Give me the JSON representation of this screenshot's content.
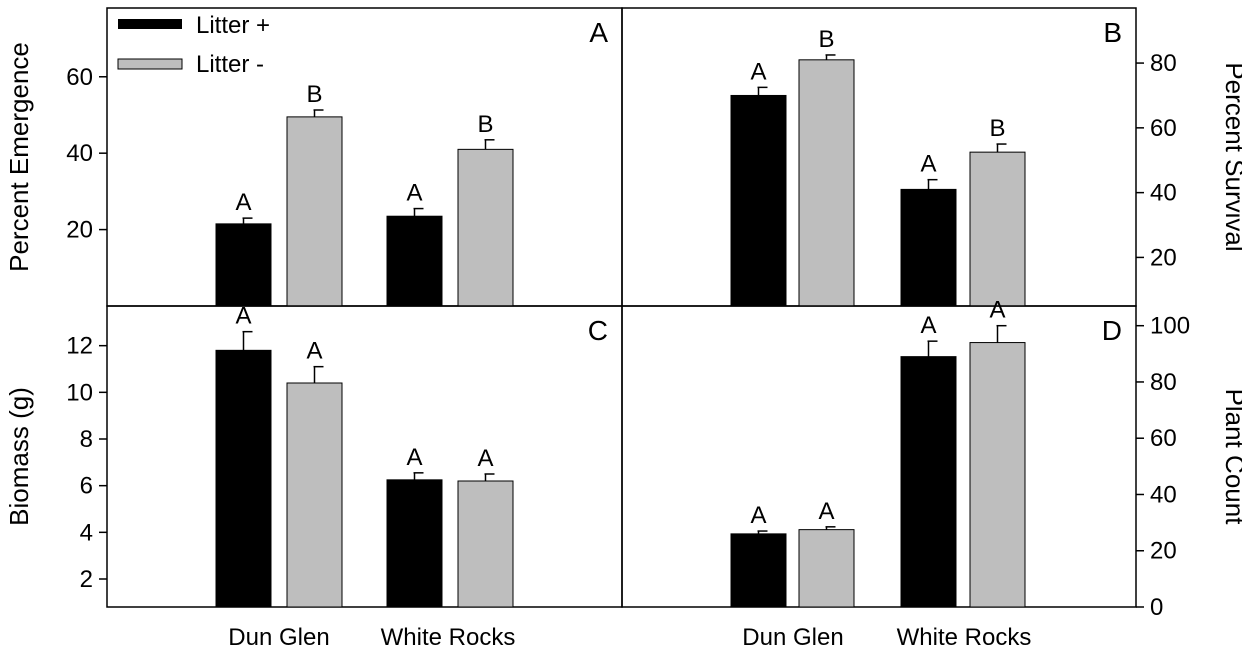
{
  "colors": {
    "litter_plus": "#000000",
    "litter_minus": "#bebebe",
    "axis": "#000000"
  },
  "legend": {
    "entries": [
      "Litter +",
      "Litter -"
    ]
  },
  "x_categories": [
    "Dun Glen",
    "White Rocks"
  ],
  "chart_data": [
    {
      "panel": "A",
      "type": "bar",
      "ylabel": "Percent Emergence",
      "ylim": [
        0,
        78
      ],
      "yticks": [
        20,
        40,
        60
      ],
      "y_axis_side": "left",
      "categories": [
        "Dun Glen",
        "White Rocks"
      ],
      "series": [
        {
          "name": "Litter +",
          "values": [
            21.5,
            23.5
          ],
          "errors": [
            1.5,
            2.0
          ],
          "letters": [
            "A",
            "A"
          ]
        },
        {
          "name": "Litter -",
          "values": [
            49.5,
            41.0
          ],
          "errors": [
            1.8,
            2.5
          ],
          "letters": [
            "B",
            "B"
          ]
        }
      ]
    },
    {
      "panel": "B",
      "type": "bar",
      "ylabel": "Percent Survival",
      "ylim": [
        5,
        97
      ],
      "yticks": [
        20,
        40,
        60,
        80
      ],
      "y_axis_side": "right",
      "categories": [
        "Dun Glen",
        "White Rocks"
      ],
      "series": [
        {
          "name": "Litter +",
          "values": [
            70.0,
            41.0
          ],
          "errors": [
            2.5,
            3.0
          ],
          "letters": [
            "A",
            "A"
          ]
        },
        {
          "name": "Litter -",
          "values": [
            81.0,
            52.5
          ],
          "errors": [
            1.5,
            2.5
          ],
          "letters": [
            "B",
            "B"
          ]
        }
      ]
    },
    {
      "panel": "C",
      "type": "bar",
      "ylabel": "Biomass (g)",
      "ylim": [
        0.8,
        13.7
      ],
      "yticks": [
        2,
        4,
        6,
        8,
        10,
        12
      ],
      "y_axis_side": "left",
      "categories": [
        "Dun Glen",
        "White Rocks"
      ],
      "series": [
        {
          "name": "Litter +",
          "values": [
            11.8,
            6.25
          ],
          "errors": [
            0.8,
            0.3
          ],
          "letters": [
            "A",
            "A"
          ]
        },
        {
          "name": "Litter -",
          "values": [
            10.4,
            6.2
          ],
          "errors": [
            0.7,
            0.3
          ],
          "letters": [
            "A",
            "A"
          ]
        }
      ]
    },
    {
      "panel": "D",
      "type": "bar",
      "ylabel": "Plant Count",
      "ylim": [
        0,
        107
      ],
      "yticks": [
        0,
        20,
        40,
        60,
        80,
        100
      ],
      "y_axis_side": "right",
      "categories": [
        "Dun Glen",
        "White Rocks"
      ],
      "series": [
        {
          "name": "Litter +",
          "values": [
            26.0,
            89.0
          ],
          "errors": [
            1.0,
            5.5
          ],
          "letters": [
            "A",
            "A"
          ]
        },
        {
          "name": "Litter -",
          "values": [
            27.5,
            94.0
          ],
          "errors": [
            1.0,
            6.0
          ],
          "letters": [
            "A",
            "A"
          ]
        }
      ]
    }
  ]
}
